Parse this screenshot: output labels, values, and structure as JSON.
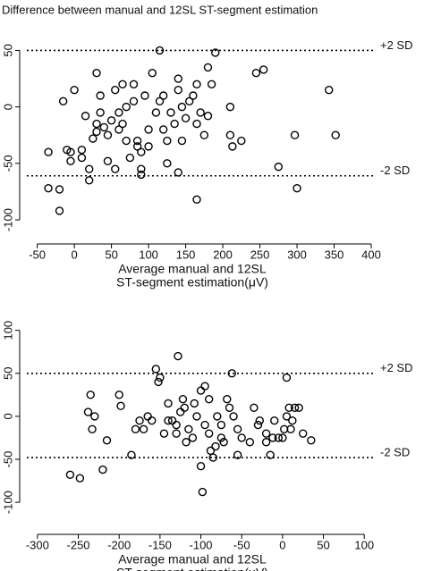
{
  "chart_data": [
    {
      "type": "scatter",
      "title": "Difference between manual and 12SL ST-segment  estimation",
      "xlabel": [
        "Average manual and 12SL",
        "ST-segment estimation(μV)"
      ],
      "xlim": [
        -64,
        406
      ],
      "ylim": [
        -115,
        63
      ],
      "xticks": [
        -50,
        0,
        50,
        100,
        150,
        200,
        250,
        300,
        350,
        400
      ],
      "yticks": [
        -100,
        -50,
        0,
        50
      ],
      "hlines": [
        {
          "value": 50,
          "label": "+2 SD"
        },
        {
          "value": -61,
          "label": "-2 SD"
        }
      ],
      "color": "#000000",
      "x": [
        115,
        190,
        245,
        255,
        343,
        352,
        297,
        300,
        275,
        210,
        213,
        225,
        210,
        180,
        185,
        165,
        140,
        -35,
        -35,
        -20,
        -20,
        -15,
        -10,
        -5,
        -5,
        0,
        10,
        10,
        15,
        20,
        20,
        25,
        30,
        30,
        30,
        35,
        35,
        40,
        45,
        45,
        50,
        55,
        55,
        60,
        65,
        65,
        70,
        70,
        75,
        80,
        80,
        85,
        85,
        90,
        90,
        90,
        95,
        100,
        100,
        105,
        110,
        115,
        120,
        125,
        125,
        130,
        135,
        140,
        140,
        145,
        145,
        150,
        155,
        160,
        165,
        165,
        170,
        175,
        180,
        120,
        60
      ],
      "values": [
        50,
        48,
        30,
        33,
        15,
        -25,
        -25,
        -72,
        -53,
        -25,
        -35,
        -30,
        0,
        35,
        20,
        -82,
        -58,
        -40,
        -72,
        -73,
        -92,
        5,
        -38,
        -40,
        -48,
        15,
        -45,
        -38,
        -8,
        -55,
        -65,
        -28,
        -22,
        -15,
        30,
        10,
        -5,
        -18,
        -25,
        -48,
        -12,
        -55,
        15,
        -5,
        -15,
        20,
        -30,
        0,
        -45,
        20,
        5,
        -30,
        -35,
        -40,
        -55,
        -60,
        10,
        -20,
        -35,
        30,
        -5,
        5,
        10,
        -50,
        -30,
        -5,
        -15,
        25,
        15,
        0,
        -30,
        -10,
        5,
        10,
        20,
        -15,
        -5,
        -25,
        -8,
        -20,
        -20
      ]
    },
    {
      "type": "scatter",
      "xlabel": [
        "Average manual and 12SL",
        "ST-segment estimation(μV)"
      ],
      "xlim": [
        -313,
        114
      ],
      "ylim": [
        -129,
        108
      ],
      "xticks": [
        -300,
        -250,
        -200,
        -150,
        -100,
        -50,
        0,
        50,
        100
      ],
      "yticks": [
        -100,
        -50,
        0,
        50,
        100
      ],
      "hlines": [
        {
          "value": 50,
          "label": "+2 SD"
        },
        {
          "value": -48,
          "label": "-2 SD"
        }
      ],
      "color": "#000000",
      "x": [
        -260,
        -248,
        -238,
        -235,
        -233,
        -230,
        -220,
        -215,
        -200,
        -198,
        -185,
        -180,
        -175,
        -170,
        -165,
        -160,
        -155,
        -152,
        -150,
        -145,
        -140,
        -135,
        -130,
        -128,
        -125,
        -122,
        -120,
        -118,
        -115,
        -110,
        -108,
        -105,
        -100,
        -98,
        -95,
        -95,
        -90,
        -88,
        -85,
        -82,
        -80,
        -75,
        -75,
        -72,
        -68,
        -65,
        -62,
        -60,
        -55,
        -50,
        -40,
        -35,
        -30,
        -28,
        -20,
        -15,
        -12,
        -10,
        -5,
        0,
        2,
        5,
        5,
        8,
        10,
        12,
        15,
        20,
        25,
        35,
        -20,
        -100,
        -90,
        -140,
        -130,
        -55
      ],
      "values": [
        -68,
        -72,
        5,
        25,
        -15,
        0,
        -62,
        -28,
        25,
        12,
        -45,
        -15,
        -5,
        -15,
        0,
        -5,
        55,
        40,
        45,
        -20,
        -5,
        -5,
        -10,
        70,
        5,
        20,
        10,
        -30,
        -15,
        -25,
        15,
        0,
        -58,
        -88,
        -10,
        35,
        20,
        -40,
        -48,
        -35,
        0,
        -25,
        -10,
        -30,
        20,
        10,
        50,
        0,
        -15,
        -25,
        -30,
        10,
        -10,
        -5,
        -20,
        -45,
        -25,
        -5,
        -25,
        -25,
        -15,
        0,
        45,
        10,
        -15,
        -5,
        10,
        10,
        -20,
        -28,
        -30,
        30,
        -20,
        15,
        -20,
        -45
      ]
    }
  ]
}
